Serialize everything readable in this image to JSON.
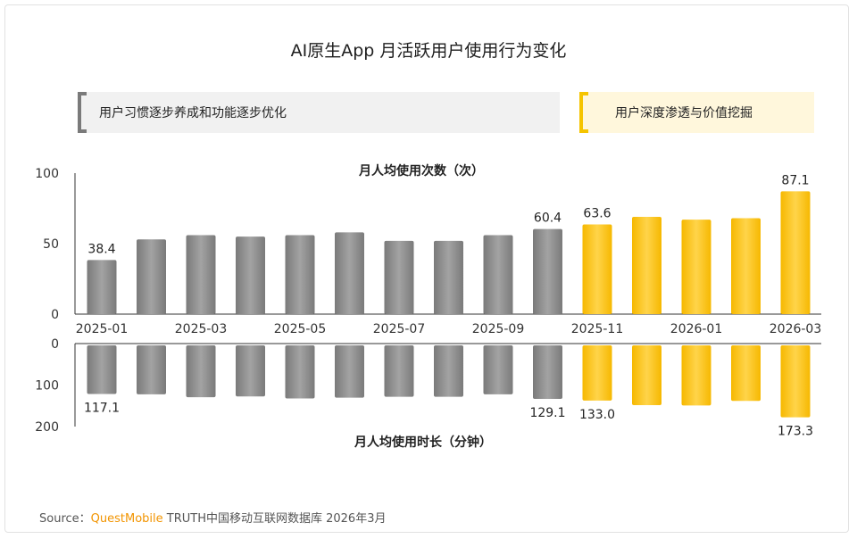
{
  "title": "AI原生App 月活跃用户使用行为变化",
  "phases": [
    {
      "label": "用户习惯逐步养成和功能逐步优化"
    },
    {
      "label": "用户深度渗透与价值挖掘"
    }
  ],
  "colors": {
    "gray": "#8c8c8c",
    "yellow": "#ffc000",
    "axis": "#333333"
  },
  "source": {
    "prefix": "Source：",
    "brand": "QuestMobile",
    "rest": " TRUTH中国移动互联网数据库 2026年3月"
  },
  "chart_data": {
    "type": "bar",
    "categories": [
      "2025-01",
      "2025-02",
      "2025-03",
      "2025-04",
      "2025-05",
      "2025-06",
      "2025-07",
      "2025-08",
      "2025-09",
      "2025-10",
      "2025-11",
      "2025-12",
      "2026-01",
      "2026-02",
      "2026-03"
    ],
    "category_tick_labels": [
      "2025-01",
      "2025-03",
      "2025-05",
      "2025-07",
      "2025-09",
      "2025-11",
      "2026-01",
      "2026-03"
    ],
    "highlight_from_index": 10,
    "series": [
      {
        "name": "月人均使用次数（次）",
        "values": [
          38.4,
          53,
          56,
          55,
          56,
          58,
          52,
          52,
          56,
          60.4,
          63.6,
          69,
          67,
          68,
          87.1
        ],
        "labels": {
          "0": "38.4",
          "9": "60.4",
          "10": "63.6",
          "14": "87.1"
        },
        "ylim": [
          0,
          100
        ],
        "yticks": [
          "100",
          "50",
          "0"
        ]
      },
      {
        "name": "月人均使用时长（分钟）",
        "values": [
          117.1,
          118,
          125,
          123,
          128,
          126,
          124,
          124,
          118,
          129.1,
          133.0,
          144,
          145,
          134,
          173.3
        ],
        "labels": {
          "0": "117.1",
          "9": "129.1",
          "10": "133.0",
          "14": "173.3"
        },
        "ylim": [
          0,
          200
        ],
        "yticks": [
          "0",
          "100",
          "200"
        ]
      }
    ]
  }
}
